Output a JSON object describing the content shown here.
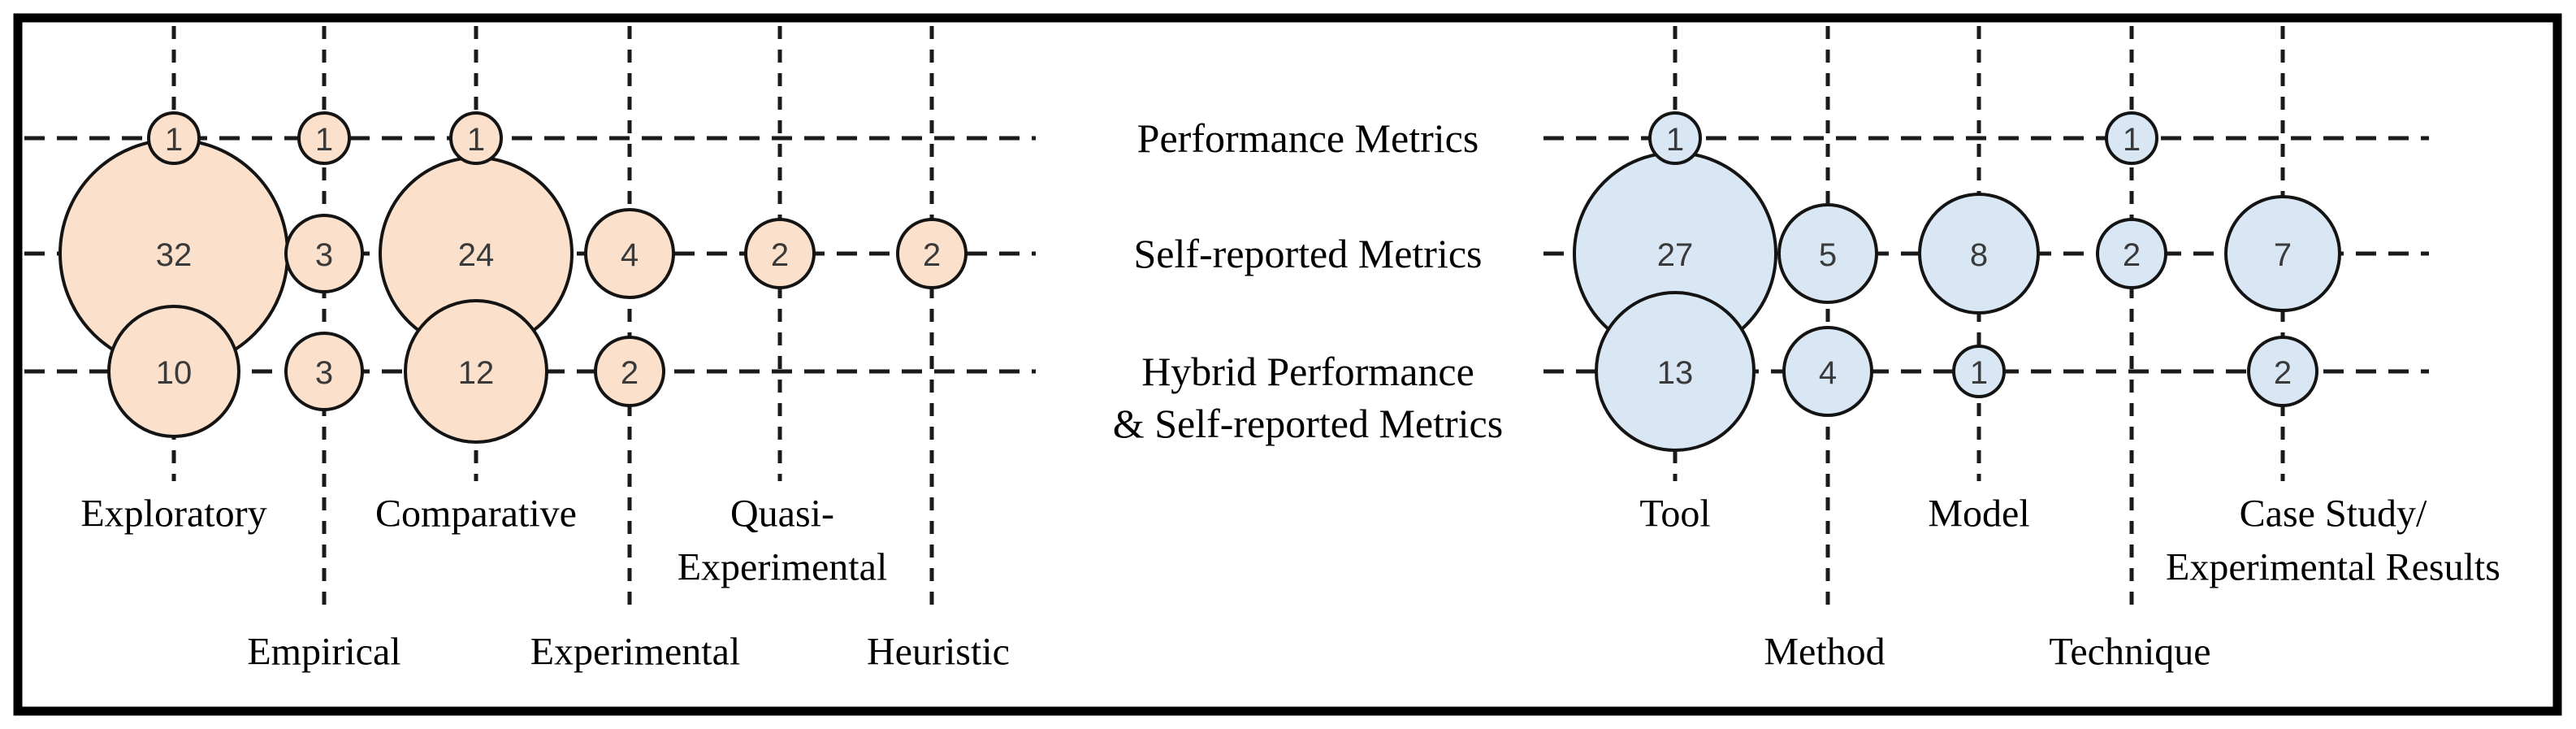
{
  "figure": {
    "background": "#FFFFFF",
    "border_color": "#000000"
  },
  "chart_data": {
    "type": "bubble",
    "title": "",
    "description": "Bubble matrix of study counts: metric types (rows) versus research study types (columns), two color groups",
    "row_categories": [
      "Performance Metrics",
      "Self-reported Metrics",
      "Hybrid Performance & Self-reported Metrics"
    ],
    "row_label_lines": [
      [
        "Performance Metrics"
      ],
      [
        "Self-reported Metrics"
      ],
      [
        "Hybrid Performance",
        "& Self-reported Metrics"
      ]
    ],
    "number_color": "#3A3A3A",
    "label_color": "#000000",
    "grid_line_color": "#1A1A1A",
    "grid_on": true,
    "groups": [
      {
        "name": "left-group",
        "bubble_fill": "#FBE0CB",
        "bubble_stroke": "#141414",
        "columns": [
          "Exploratory",
          "Empirical",
          "Comparative",
          "Experimental",
          "Quasi-Experimental",
          "Heuristic"
        ],
        "column_label_lines": [
          [
            "Exploratory"
          ],
          [
            "Empirical"
          ],
          [
            "Comparative"
          ],
          [
            "Experimental"
          ],
          [
            "Quasi-",
            "Experimental"
          ],
          [
            "Heuristic"
          ]
        ],
        "values_by_row": [
          [
            1,
            1,
            1,
            null,
            null,
            null
          ],
          [
            32,
            3,
            24,
            4,
            2,
            2
          ],
          [
            10,
            3,
            12,
            2,
            null,
            null
          ]
        ]
      },
      {
        "name": "right-group",
        "bubble_fill": "#D9E7F4",
        "bubble_stroke": "#141414",
        "columns": [
          "Tool",
          "Method",
          "Model",
          "Technique",
          "Case Study/Experimental Results"
        ],
        "column_label_lines": [
          [
            "Tool"
          ],
          [
            "Method"
          ],
          [
            "Model"
          ],
          [
            "Technique"
          ],
          [
            "Case Study/",
            "Experimental Results"
          ]
        ],
        "values_by_row": [
          [
            1,
            null,
            null,
            1,
            null
          ],
          [
            27,
            5,
            8,
            2,
            7
          ],
          [
            13,
            4,
            1,
            null,
            2
          ]
        ]
      }
    ]
  }
}
